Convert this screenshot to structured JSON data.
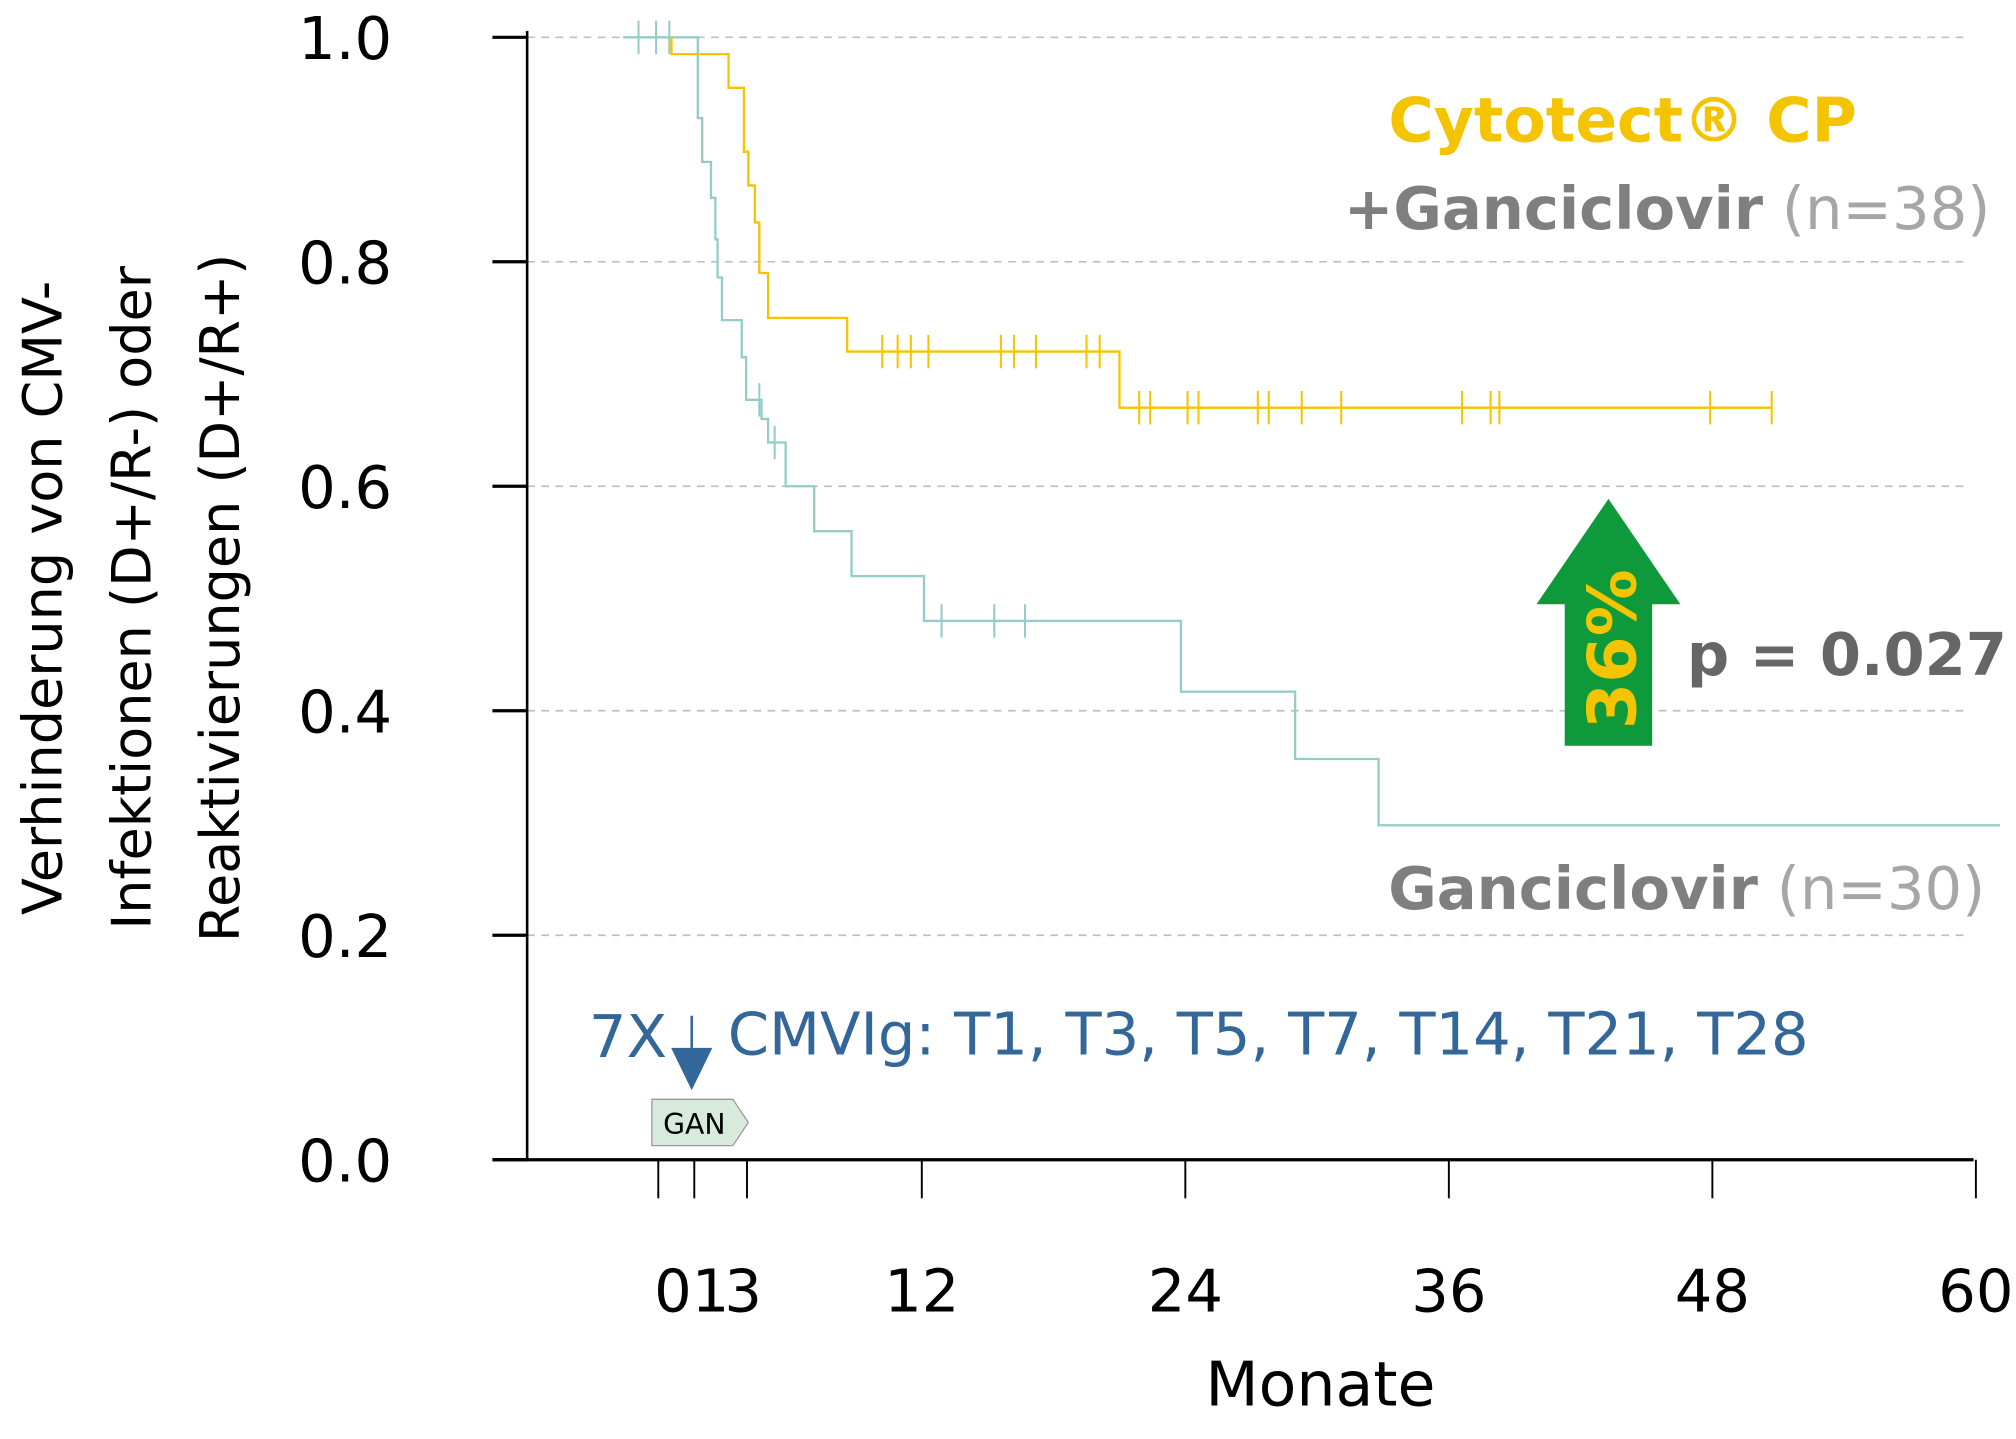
{
  "chart_data": {
    "type": "line",
    "subtype": "kaplan-meier step",
    "xlabel": "Monate",
    "ylabel_lines": [
      "Verhinderung von CMV-",
      "Infektionen (D+/R-) oder",
      "Reaktivierungen (D+/R+)"
    ],
    "xlim": [
      -2,
      60
    ],
    "ylim": [
      0,
      1
    ],
    "x_ticks": [
      0,
      1,
      3,
      12,
      24,
      36,
      48,
      60
    ],
    "x_tick_labels": [
      "0",
      "1",
      "3",
      "12",
      "24",
      "36",
      "48",
      "60"
    ],
    "y_ticks": [
      0,
      0.2,
      0.4,
      0.6,
      0.8,
      1.0
    ],
    "y_tick_labels": [
      "0.0",
      "0.2",
      "0.4",
      "0.6",
      "0.8",
      "1.0"
    ],
    "grid": "horizontal dashed",
    "series": [
      {
        "name": "Cytotect® CP +Ganciclovir (n=38)",
        "color": "#f5c400",
        "steps": [
          [
            0.6,
            0.985
          ],
          [
            3.2,
            0.955
          ],
          [
            3.9,
            0.898
          ],
          [
            4.1,
            0.868
          ],
          [
            4.4,
            0.835
          ],
          [
            4.6,
            0.79
          ],
          [
            5.0,
            0.75
          ],
          [
            8.6,
            0.72
          ],
          [
            21.0,
            0.67
          ],
          [
            50.7,
            0.67
          ]
        ],
        "censored": [
          [
            10.2,
            0.72
          ],
          [
            10.9,
            0.72
          ],
          [
            11.5,
            0.72
          ],
          [
            12.3,
            0.72
          ],
          [
            15.6,
            0.72
          ],
          [
            16.2,
            0.72
          ],
          [
            17.2,
            0.72
          ],
          [
            19.5,
            0.72
          ],
          [
            20.1,
            0.72
          ],
          [
            21.9,
            0.67
          ],
          [
            22.4,
            0.67
          ],
          [
            24.1,
            0.67
          ],
          [
            24.6,
            0.67
          ],
          [
            27.3,
            0.67
          ],
          [
            27.8,
            0.67
          ],
          [
            29.3,
            0.67
          ],
          [
            31.1,
            0.67
          ],
          [
            36.6,
            0.67
          ],
          [
            37.9,
            0.67
          ],
          [
            38.3,
            0.67
          ],
          [
            47.9,
            0.67
          ],
          [
            50.7,
            0.67
          ]
        ]
      },
      {
        "name": "Ganciclovir (n=30)",
        "color": "#94cdc8",
        "steps": [
          [
            -1.6,
            1.0
          ],
          [
            1.8,
            0.928
          ],
          [
            2.0,
            0.889
          ],
          [
            2.4,
            0.857
          ],
          [
            2.6,
            0.82
          ],
          [
            2.7,
            0.786
          ],
          [
            2.9,
            0.748
          ],
          [
            3.8,
            0.715
          ],
          [
            4.0,
            0.677
          ],
          [
            4.7,
            0.66
          ],
          [
            5.0,
            0.639
          ],
          [
            5.8,
            0.6
          ],
          [
            7.1,
            0.56
          ],
          [
            8.8,
            0.52
          ],
          [
            12.1,
            0.48
          ],
          [
            23.8,
            0.417
          ],
          [
            29.0,
            0.357
          ],
          [
            32.8,
            0.298
          ],
          [
            61.1,
            0.298
          ]
        ],
        "censored": [
          [
            -0.9,
            1.0
          ],
          [
            -0.1,
            1.0
          ],
          [
            0.5,
            1.0
          ],
          [
            4.6,
            0.677
          ],
          [
            5.3,
            0.639
          ],
          [
            12.9,
            0.48
          ],
          [
            15.3,
            0.48
          ],
          [
            16.7,
            0.48
          ]
        ]
      }
    ],
    "annotations": {
      "cytotect_title": "Cytotect® CP",
      "cytotect_sub_bold": "+Ganciclovir",
      "cytotect_sub_n": "(n=38)",
      "gan_bold": "Ganciclovir",
      "gan_n": "(n=30)",
      "arrow_label": "36%",
      "arrow_color": "#0e9a3a",
      "p_value": "p = 0.027",
      "dosing_prefix": "7X",
      "dosing_text": "CMVIg: T1, T3, T5, T7, T14, T21, T28",
      "dosing_color": "#336699",
      "gan_box": "GAN"
    }
  }
}
